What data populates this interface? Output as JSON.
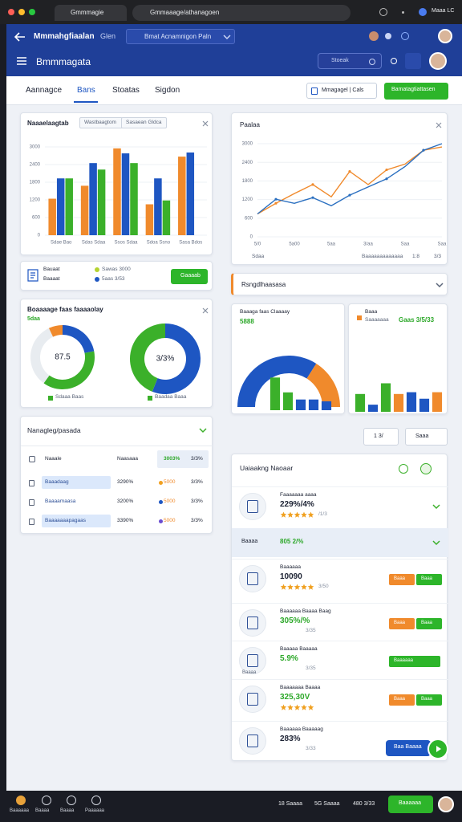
{
  "browser": {
    "tab": "Gmmmagie",
    "url": "Gmmaaage/athanagoen",
    "profile": "Maaa LC"
  },
  "header": {
    "app": "Mmmahgfiaalan",
    "app_sub": "Glen",
    "project": "Bmat Acnamnigon Paln",
    "title": "Bmmmagata",
    "search": "Stoeak"
  },
  "tabs": {
    "items": [
      "Aannagce",
      "Bans",
      "Stoatas",
      "Sigdon"
    ],
    "active": 1,
    "select": "Mmagagel | Cals",
    "primary": "Bamatagtiattasen"
  },
  "sales_card": {
    "title": "Naaaelaagtab",
    "chips": [
      "Wastbaagtom",
      "Sasaean Gldca"
    ],
    "chart": {
      "type": "bar",
      "categories": [
        "Sdae Bao",
        "Sdas Sdaa",
        "Ssos Sdaa",
        "Sdoa Ssno",
        "Sasa Bdos"
      ],
      "series": [
        {
          "color": "#f08a2c",
          "values": [
            1240,
            1680,
            2950,
            1050,
            2670
          ]
        },
        {
          "color": "#1e56c2",
          "values": [
            1930,
            2450,
            2780,
            1930,
            2810
          ]
        },
        {
          "color": "#3bb02a",
          "values": [
            1930,
            2230,
            2450,
            1180,
            null
          ]
        }
      ],
      "ylim": [
        0,
        3000
      ],
      "yticks": [
        0,
        600,
        1200,
        1800,
        2400,
        3000
      ],
      "grid": true
    }
  },
  "summary": {
    "rows": [
      {
        "label": "Bauaat",
        "value": "Sawas 3000"
      },
      {
        "label": "Baaaat",
        "value": "5aas 3/53"
      }
    ],
    "button": "Gaaaab"
  },
  "share_card": {
    "title": "Boaaaage faas faaaaolay",
    "subtitle": "5daa",
    "donuts": [
      {
        "center": "87.5",
        "legend": "Sdaaa Baas",
        "values": [
          22,
          38,
          33,
          7
        ],
        "colors": [
          "#1e56c2",
          "#3bb02a",
          "#e8ecf0",
          "#f08a2c"
        ]
      },
      {
        "center": "3/3%",
        "legend": "Baadaa Baaa",
        "values": [
          56,
          44
        ],
        "colors": [
          "#1e56c2",
          "#3bb02a"
        ]
      }
    ]
  },
  "table_card": {
    "title": "Nanagleg/pasada",
    "header": [
      "Naaale",
      "Naasaaa",
      "3003%",
      "3/3%"
    ],
    "rows": [
      [
        "Baaadaag",
        "3290%",
        "5000",
        "3/3%"
      ],
      [
        "Baaaamaasa",
        "3200%",
        "5000",
        "3/3%"
      ],
      [
        "Baaaaaaapagaas",
        "3390%",
        "5000",
        "3/3%"
      ]
    ]
  },
  "trend_card": {
    "title": "Paalaa",
    "footer": [
      "Sdaa",
      "Baaaaaaaaaaaaa",
      "1:8",
      "3/3"
    ],
    "chart": {
      "type": "line",
      "categories": [
        "5/0",
        null,
        "5a00",
        null,
        "5aa",
        null,
        "3/aa",
        null,
        "Saa",
        null,
        "Saa"
      ],
      "series": [
        {
          "color": "#f08a2c",
          "values": [
            737,
            1079,
            1395,
            1684,
            1289,
            2105,
            1684,
            2158,
            2342,
            2789,
            2895
          ]
        },
        {
          "color": "#2a6fc0",
          "values": [
            737,
            1211,
            1079,
            1263,
            1000,
            1342,
            1605,
            1868,
            2263,
            2789,
            3000
          ]
        }
      ],
      "ylim": [
        0,
        3000
      ],
      "yticks": [
        0,
        600,
        1200,
        1800,
        2400,
        3000
      ],
      "grid": true
    }
  },
  "dropdown": {
    "label": "Rsngdlhaasasa"
  },
  "mini_cards": [
    {
      "title": "Baaaga faas Claaaay",
      "value": "5888",
      "gauge": {
        "values": [
          68,
          32
        ],
        "colors": [
          "#1e56c2",
          "#f08a2c"
        ]
      },
      "bars": {
        "values": [
          55,
          30,
          18,
          18,
          15
        ],
        "colors": [
          "#3bb02a",
          "#3bb02a",
          "#1e56c2",
          "#1e56c2",
          "#1e56c2"
        ],
        "ylim": [
          0,
          100
        ]
      }
    },
    {
      "title": "Baaa",
      "subtitle": "Saaaaaaa",
      "value": "Gaas 3/5/33",
      "bars": {
        "values": [
          30,
          12,
          48,
          30,
          33,
          22,
          33
        ],
        "colors": [
          "#3bb02a",
          "#1e56c2",
          "#3bb02a",
          "#f08a2c",
          "#1e56c2",
          "#1e56c2",
          "#f08a2c"
        ],
        "ylim": [
          0,
          100
        ]
      }
    }
  ],
  "controls": [
    "1 3/",
    "Saaa"
  ],
  "list_card": {
    "title": "Uaiaakng Naoaar",
    "items": [
      {
        "title": "Faaaaaaa aaaa",
        "value": "229%/4%",
        "meta": "/1/3",
        "stars": true,
        "chevron": true,
        "color": "#1c2233"
      },
      {
        "title": "Baaaa",
        "value": "805 2/%",
        "highlight": true,
        "chevron": true,
        "color": "#2da82a"
      },
      {
        "title": "Baaaaaa",
        "value": "10090",
        "meta": "3/50",
        "stars": true,
        "badges": [
          "Baaa",
          "Baaa"
        ],
        "color": "#1c2233"
      },
      {
        "title": "Baaaaaa Baaaa Baag",
        "value": "305%/%",
        "meta": "3/35",
        "badges": [
          "Baaa",
          "Baaa"
        ],
        "color": "#2da82a"
      },
      {
        "title": "Baaaaa Baaaaa",
        "icon_label": "Baaaa",
        "value": "5.9%",
        "meta": "3/35",
        "badges": [
          "Baaaaaa"
        ],
        "color": "#2da82a"
      },
      {
        "title": "Baaaaaaa Baaaa",
        "value": "325,30V",
        "stars": true,
        "badges": [
          "Baaa",
          "Baaa"
        ],
        "color": "#2da82a"
      },
      {
        "title": "Baaaaaa Baaaaag",
        "value": "283%",
        "meta": "3/33",
        "button": "Baa Baaaa",
        "color": "#1c2233"
      }
    ]
  },
  "taskbar": {
    "apps": [
      "Baaaaaa",
      "Baaaa",
      "Baaaa",
      "Paaaaaa"
    ],
    "status": [
      "18 Saaaa",
      "5G Saaaa",
      "480 3/33"
    ],
    "button": "Baaaaaa"
  }
}
